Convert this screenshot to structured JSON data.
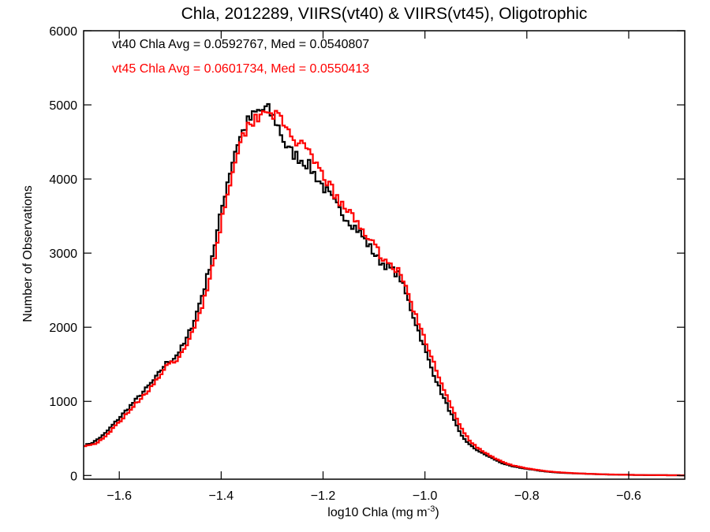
{
  "chart_data": {
    "type": "line",
    "step": true,
    "title": "Chla, 2012289, VIIRS(vt40) & VIIRS(vt45), Oligotrophic",
    "xlabel": "log10 Chla (mg m",
    "xlabel_sup": "-3",
    "xlabel_close": ")",
    "ylabel": "Number of Observations",
    "xlim": [
      -1.67,
      -0.49
    ],
    "ylim": [
      -50,
      6000
    ],
    "xticks": [
      -1.6,
      -1.4,
      -1.2,
      -1.0,
      -0.8,
      -0.6
    ],
    "xtick_labels": [
      "−1.6",
      "−1.4",
      "−1.2",
      "−1.0",
      "−0.8",
      "−0.6"
    ],
    "yticks": [
      0,
      1000,
      2000,
      3000,
      4000,
      5000,
      6000
    ],
    "ytick_labels": [
      "0",
      "1000",
      "2000",
      "3000",
      "4000",
      "5000",
      "6000"
    ],
    "grid": false,
    "bin_width": 0.005,
    "annotations": [
      {
        "text": "vt40 Chla Avg = 0.0592767, Med = 0.0540807",
        "color": "#000000"
      },
      {
        "text": "vt45 Chla Avg = 0.0601734, Med = 0.0550413",
        "color": "#ff0000"
      }
    ],
    "series": [
      {
        "color": "#000000",
        "anchors_x": [
          -1.67,
          -1.65,
          -1.63,
          -1.61,
          -1.59,
          -1.57,
          -1.55,
          -1.53,
          -1.51,
          -1.49,
          -1.47,
          -1.45,
          -1.43,
          -1.41,
          -1.39,
          -1.37,
          -1.35,
          -1.33,
          -1.31,
          -1.29,
          -1.27,
          -1.25,
          -1.23,
          -1.21,
          -1.19,
          -1.17,
          -1.15,
          -1.13,
          -1.11,
          -1.09,
          -1.07,
          -1.05,
          -1.03,
          -1.01,
          -0.99,
          -0.97,
          -0.95,
          -0.93,
          -0.91,
          -0.89,
          -0.87,
          -0.85,
          -0.83,
          -0.81,
          -0.79,
          -0.77,
          -0.75,
          -0.73,
          -0.71,
          -0.69,
          -0.67,
          -0.65,
          -0.63,
          -0.61,
          -0.59,
          -0.57,
          -0.55,
          -0.53,
          -0.51,
          -0.49
        ],
        "anchors_y": [
          400,
          450,
          550,
          700,
          850,
          1000,
          1150,
          1300,
          1500,
          1600,
          1800,
          2150,
          2600,
          3200,
          3900,
          4450,
          4750,
          4900,
          4950,
          4750,
          4400,
          4300,
          4200,
          4000,
          3800,
          3600,
          3450,
          3300,
          3100,
          2900,
          2800,
          2700,
          2300,
          1900,
          1500,
          1150,
          850,
          550,
          400,
          310,
          240,
          170,
          125,
          100,
          80,
          60,
          45,
          35,
          30,
          25,
          20,
          15,
          12,
          10,
          8,
          6,
          5,
          4,
          3,
          2
        ],
        "jitter_seed": 7,
        "jitter_amp": 0.02
      },
      {
        "color": "#ff0000",
        "anchors_x": [
          -1.67,
          -1.65,
          -1.63,
          -1.61,
          -1.59,
          -1.57,
          -1.55,
          -1.53,
          -1.51,
          -1.49,
          -1.47,
          -1.45,
          -1.43,
          -1.41,
          -1.39,
          -1.37,
          -1.35,
          -1.33,
          -1.31,
          -1.29,
          -1.27,
          -1.25,
          -1.23,
          -1.21,
          -1.19,
          -1.17,
          -1.15,
          -1.13,
          -1.11,
          -1.09,
          -1.07,
          -1.05,
          -1.03,
          -1.01,
          -0.99,
          -0.97,
          -0.95,
          -0.93,
          -0.91,
          -0.89,
          -0.87,
          -0.85,
          -0.83,
          -0.81,
          -0.79,
          -0.77,
          -0.75,
          -0.73,
          -0.71,
          -0.69,
          -0.67,
          -0.65,
          -0.63,
          -0.61,
          -0.59,
          -0.57,
          -0.55,
          -0.53,
          -0.51,
          -0.49
        ],
        "anchors_y": [
          400,
          420,
          500,
          650,
          800,
          950,
          1100,
          1250,
          1450,
          1550,
          1700,
          2050,
          2450,
          3050,
          3750,
          4350,
          4700,
          4850,
          4950,
          4850,
          4650,
          4500,
          4350,
          4150,
          3950,
          3700,
          3550,
          3400,
          3200,
          3000,
          2850,
          2750,
          2400,
          2000,
          1650,
          1300,
          950,
          650,
          450,
          340,
          260,
          190,
          140,
          110,
          85,
          65,
          50,
          40,
          32,
          26,
          21,
          16,
          13,
          10,
          8,
          6,
          5,
          4,
          3,
          2
        ],
        "jitter_seed": 19,
        "jitter_amp": 0.018
      }
    ]
  }
}
